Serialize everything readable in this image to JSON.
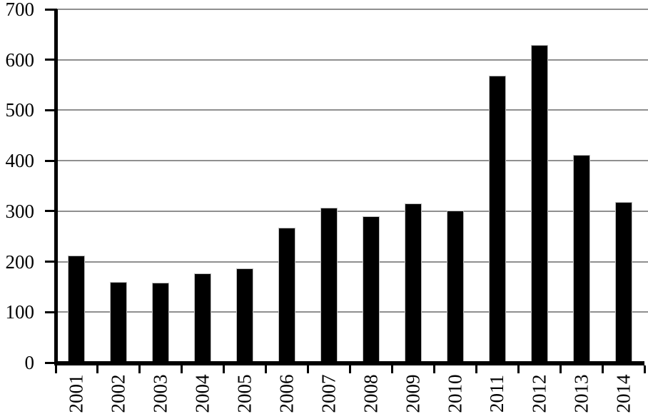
{
  "chart_data": {
    "type": "bar",
    "title": "",
    "xlabel": "",
    "ylabel": "",
    "categories": [
      "2001",
      "2002",
      "2003",
      "2004",
      "2005",
      "2006",
      "2007",
      "2008",
      "2009",
      "2010",
      "2011",
      "2012",
      "2013",
      "2014"
    ],
    "values": [
      212,
      160,
      158,
      177,
      187,
      267,
      307,
      290,
      315,
      301,
      568,
      630,
      412,
      318
    ],
    "ylim": [
      0,
      700
    ],
    "yticks": [
      0,
      100,
      200,
      300,
      400,
      500,
      600,
      700
    ],
    "grid": true,
    "legend_position": "none",
    "bar_color": "#000000",
    "bar_outline_color": "#bdbdbd",
    "gridline_color": "#8f8f8f",
    "axis_color": "#000000",
    "text_color": "#000000",
    "background_color": "#ffffff"
  }
}
